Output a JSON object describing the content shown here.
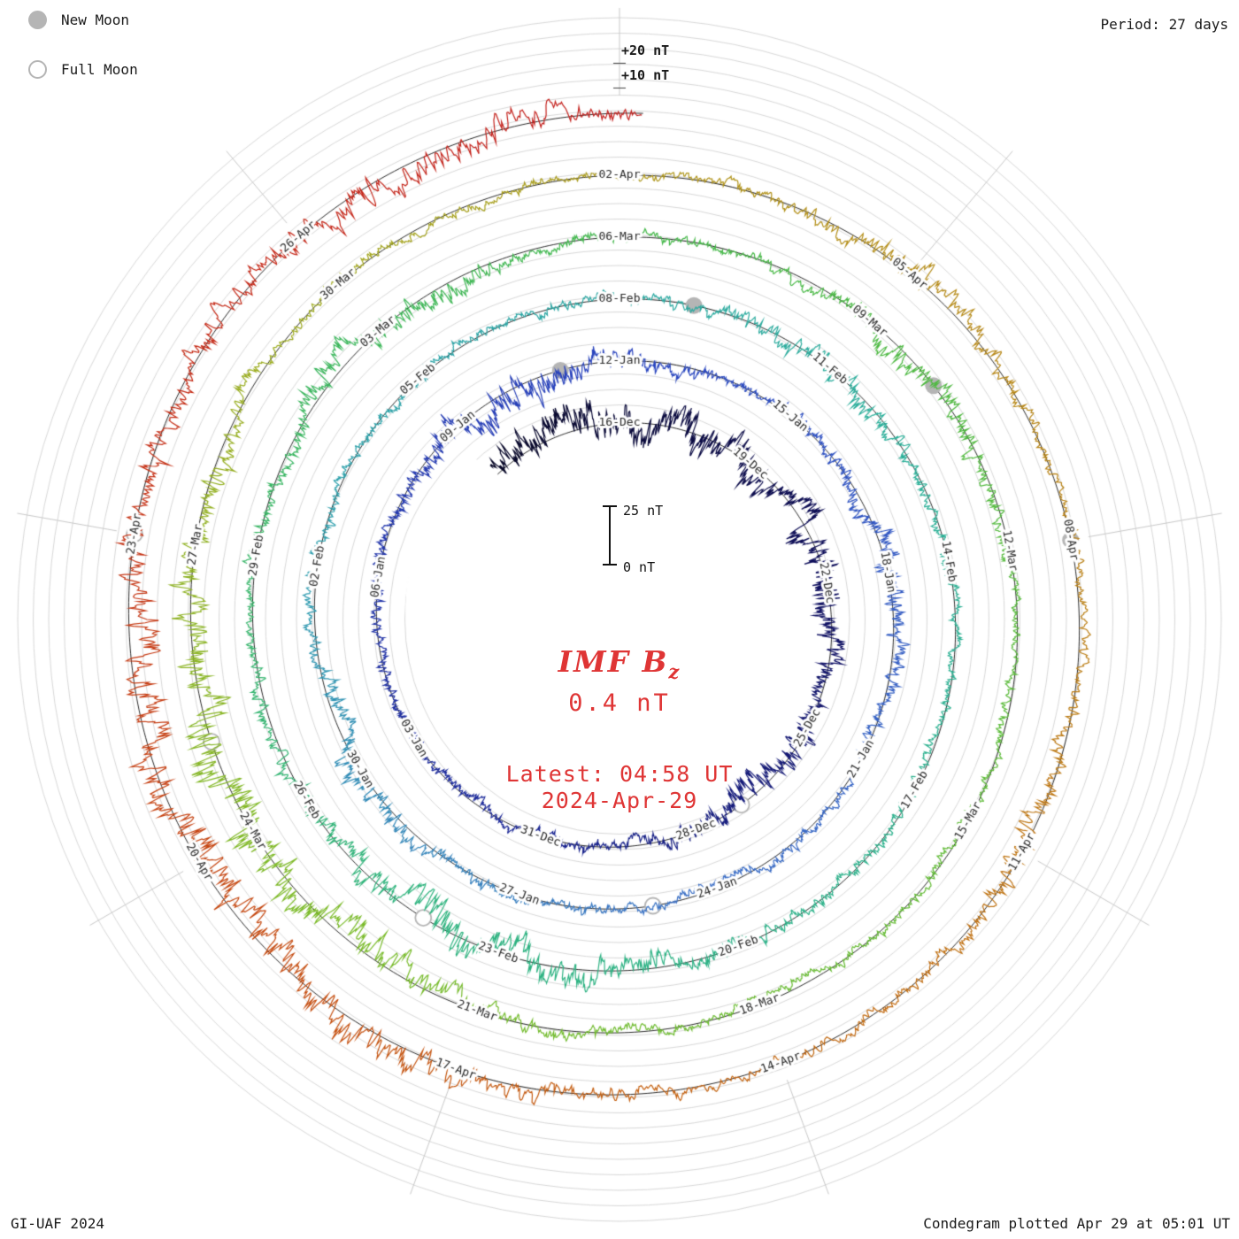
{
  "colors": {
    "accent_red": "#df3535",
    "grid_circle": "#d9d9d9",
    "grid_spoke": "#c9c9c9",
    "baseline": "#111111",
    "moon_gray": "#b5b5b5",
    "label_text": "#2a2a2a",
    "corner_text": "#1a1a1a"
  },
  "legend": {
    "new_moon": "New Moon",
    "full_moon": "Full Moon"
  },
  "header": {
    "period_label": "Period: 27 days"
  },
  "scale": {
    "outer_plus20": "+20 nT",
    "outer_plus10": "+10 nT",
    "bar_top": "25 nT",
    "bar_bottom": "0 nT"
  },
  "center": {
    "title_main": "IMF B",
    "title_sub": "z",
    "value": "0.4 nT",
    "latest_line1": "Latest: 04:58 UT",
    "latest_line2": "2024-Apr-29"
  },
  "footer": {
    "left": "GI-UAF 2024",
    "right": "Condegram plotted Apr 29 at 05:01 UT"
  },
  "chart_data": {
    "type": "line",
    "layout": "polar_spiral_condegram",
    "title": "IMF Bz",
    "current_value_nT": 0.4,
    "latest_ut": "04:58 UT 2024-Apr-29",
    "period_days": 27,
    "nT_per_ring_spacing": 25,
    "rotation_direction": "clockwise",
    "t_reference": "days since 2023-12-16 (top of innermost labeled ring)",
    "t_domain_days": [
      -3,
      135.2
    ],
    "ring_start_dates": [
      "2023-12-16",
      "2024-01-12",
      "2024-02-08",
      "2024-03-06",
      "2024-04-02"
    ],
    "label_step_days": 3,
    "date_labels": [
      {
        "text": "16-Dec",
        "t": 0
      },
      {
        "text": "19-Dec",
        "t": 3
      },
      {
        "text": "22-Dec",
        "t": 6
      },
      {
        "text": "25-Dec",
        "t": 9
      },
      {
        "text": "28-Dec",
        "t": 12
      },
      {
        "text": "31-Dec",
        "t": 15
      },
      {
        "text": "03-Jan",
        "t": 18
      },
      {
        "text": "06-Jan",
        "t": 21
      },
      {
        "text": "09-Jan",
        "t": 24
      },
      {
        "text": "12-Jan",
        "t": 27
      },
      {
        "text": "15-Jan",
        "t": 30
      },
      {
        "text": "18-Jan",
        "t": 33
      },
      {
        "text": "21-Jan",
        "t": 36
      },
      {
        "text": "24-Jan",
        "t": 39
      },
      {
        "text": "27-Jan",
        "t": 42
      },
      {
        "text": "30-Jan",
        "t": 45
      },
      {
        "text": "02-Feb",
        "t": 48
      },
      {
        "text": "05-Feb",
        "t": 51
      },
      {
        "text": "08-Feb",
        "t": 54
      },
      {
        "text": "11-Feb",
        "t": 57
      },
      {
        "text": "14-Feb",
        "t": 60
      },
      {
        "text": "17-Feb",
        "t": 63
      },
      {
        "text": "20-Feb",
        "t": 66
      },
      {
        "text": "23-Feb",
        "t": 69
      },
      {
        "text": "26-Feb",
        "t": 72
      },
      {
        "text": "29-Feb",
        "t": 75
      },
      {
        "text": "03-Mar",
        "t": 78
      },
      {
        "text": "06-Mar",
        "t": 81
      },
      {
        "text": "09-Mar",
        "t": 84
      },
      {
        "text": "12-Mar",
        "t": 87
      },
      {
        "text": "15-Mar",
        "t": 90
      },
      {
        "text": "18-Mar",
        "t": 93
      },
      {
        "text": "21-Mar",
        "t": 96
      },
      {
        "text": "24-Mar",
        "t": 99
      },
      {
        "text": "27-Mar",
        "t": 102
      },
      {
        "text": "30-Mar",
        "t": 105
      },
      {
        "text": "02-Apr",
        "t": 108
      },
      {
        "text": "05-Apr",
        "t": 111
      },
      {
        "text": "08-Apr",
        "t": 114
      },
      {
        "text": "11-Apr",
        "t": 117
      },
      {
        "text": "14-Apr",
        "t": 120
      },
      {
        "text": "17-Apr",
        "t": 123
      },
      {
        "text": "20-Apr",
        "t": 126
      },
      {
        "text": "23-Apr",
        "t": 129
      },
      {
        "text": "26-Apr",
        "t": 132
      }
    ],
    "new_moons": [
      {
        "date": "2024-01-11",
        "t": 26
      },
      {
        "date": "2024-02-09",
        "t": 55
      },
      {
        "date": "2024-03-10",
        "t": 85
      },
      {
        "date": "2024-04-08",
        "t": 114
      }
    ],
    "full_moons": [
      {
        "date": "2023-12-27",
        "t": 11
      },
      {
        "date": "2024-01-25",
        "t": 40
      },
      {
        "date": "2024-02-24",
        "t": 70
      },
      {
        "date": "2024-03-25",
        "t": 100
      },
      {
        "date": "2024-04-23",
        "t": 129
      }
    ],
    "grid": {
      "spoke_step_deg": 40,
      "circles_per_ring": 4
    },
    "trace_model": {
      "note": "high-frequency IMF Bz fluctuation approximated procedurally",
      "base_amplitude_nT": 4.2,
      "clamp_nT": 12,
      "storm_periods": [
        {
          "t": -1.2,
          "sigma": 1.4,
          "amp": 8
        },
        {
          "t": 2,
          "sigma": 1.5,
          "amp": 9
        },
        {
          "t": 6,
          "sigma": 1.2,
          "amp": 7
        },
        {
          "t": 10.5,
          "sigma": 1.2,
          "amp": 7
        },
        {
          "t": 25,
          "sigma": 1.5,
          "amp": 8
        },
        {
          "t": 33,
          "sigma": 1.0,
          "amp": 5
        },
        {
          "t": 45,
          "sigma": 1.0,
          "amp": 5
        },
        {
          "t": 57,
          "sigma": 1.0,
          "amp": 5
        },
        {
          "t": 69,
          "sigma": 2.0,
          "amp": 10
        },
        {
          "t": 78,
          "sigma": 1.2,
          "amp": 7
        },
        {
          "t": 85,
          "sigma": 1.0,
          "amp": 6
        },
        {
          "t": 99.5,
          "sigma": 2.2,
          "amp": 13
        },
        {
          "t": 111,
          "sigma": 1.0,
          "amp": 6
        },
        {
          "t": 117,
          "sigma": 1.0,
          "amp": 5
        },
        {
          "t": 124,
          "sigma": 1.5,
          "amp": 8
        },
        {
          "t": 127.5,
          "sigma": 2.0,
          "amp": 10
        },
        {
          "t": 133,
          "sigma": 1.5,
          "amp": 8
        }
      ],
      "color_stops": [
        {
          "t": -3,
          "color": "#080828"
        },
        {
          "t": 6,
          "color": "#101060"
        },
        {
          "t": 16,
          "color": "#1d2a9a"
        },
        {
          "t": 27,
          "color": "#2b46c0"
        },
        {
          "t": 39,
          "color": "#3a6ec6"
        },
        {
          "t": 48,
          "color": "#2e9fae"
        },
        {
          "t": 58,
          "color": "#2aaf99"
        },
        {
          "t": 70,
          "color": "#2fb47e"
        },
        {
          "t": 81,
          "color": "#43b84a"
        },
        {
          "t": 90,
          "color": "#5fbb35"
        },
        {
          "t": 98,
          "color": "#7dbb28"
        },
        {
          "t": 104,
          "color": "#9cab1e"
        },
        {
          "t": 109,
          "color": "#b29219"
        },
        {
          "t": 115,
          "color": "#bc7d14"
        },
        {
          "t": 121,
          "color": "#c56212"
        },
        {
          "t": 126,
          "color": "#c64512"
        },
        {
          "t": 130,
          "color": "#c52b15"
        },
        {
          "t": 135.2,
          "color": "#c41f1f"
        }
      ]
    }
  }
}
